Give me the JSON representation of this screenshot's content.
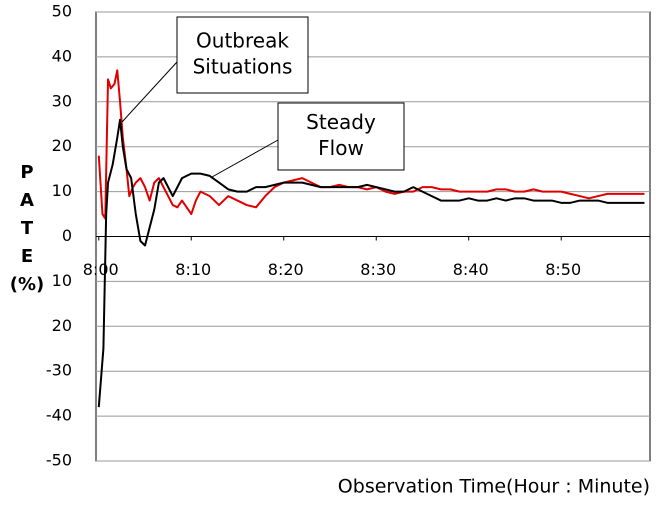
{
  "chart_data": {
    "type": "line",
    "ylabel": [
      "P",
      "A",
      "T",
      "E",
      "(%)"
    ],
    "xlabel": "Observation  Time(Hour : Minute)",
    "xlim": [
      -0.3,
      59.6
    ],
    "ylim": [
      -50,
      50
    ],
    "yticks": [
      50,
      40,
      30,
      20,
      10,
      0,
      {
        "value": -10,
        "label": "10"
      },
      {
        "value": -20,
        "label": "20"
      },
      -30,
      -40,
      -50
    ],
    "xticks": [
      {
        "value": 0,
        "label": "8:00"
      },
      {
        "value": 10,
        "label": "8:10"
      },
      {
        "value": 20,
        "label": "8:20"
      },
      {
        "value": 30,
        "label": "8:30"
      },
      {
        "value": 40,
        "label": "8:40"
      },
      {
        "value": 50,
        "label": "8:50"
      }
    ],
    "grid": true,
    "annotations": [
      {
        "lines": [
          "Outbreak",
          "Situations"
        ]
      },
      {
        "lines": [
          "Steady",
          "Flow"
        ]
      }
    ],
    "series": [
      {
        "color": "#000000",
        "x": [
          0,
          0.5,
          0.8,
          1,
          1.5,
          2,
          2.3,
          2.6,
          3,
          3.5,
          4,
          4.5,
          5,
          5.5,
          6,
          6.5,
          7,
          7.5,
          8,
          8.5,
          9,
          10,
          11,
          12,
          13,
          14,
          15,
          16,
          17,
          18,
          19,
          20,
          21,
          22,
          23,
          24,
          25,
          26,
          27,
          28,
          29,
          30,
          31,
          32,
          33,
          34,
          35,
          36,
          37,
          38,
          39,
          40,
          41,
          42,
          43,
          44,
          45,
          46,
          47,
          48,
          49,
          50,
          51,
          52,
          53,
          54,
          55,
          56,
          57,
          58,
          59
        ],
        "values": [
          -38,
          -25,
          5,
          12,
          16,
          22,
          26,
          20,
          15,
          13,
          5,
          -1,
          -2,
          2,
          6,
          12,
          13,
          11,
          9,
          11,
          13,
          14,
          14,
          13.5,
          12,
          10.5,
          10,
          10,
          11,
          11,
          11.5,
          12,
          12,
          12,
          11.5,
          11,
          11,
          11,
          11,
          11,
          11.5,
          11,
          10.5,
          10,
          10,
          11,
          10,
          9,
          8,
          8,
          8,
          8.5,
          8,
          8,
          8.5,
          8,
          8.5,
          8.5,
          8,
          8,
          8,
          7.5,
          7.5,
          8,
          8,
          8,
          7.5,
          7.5,
          7.5,
          7.5,
          7.5
        ]
      },
      {
        "color": "#e00000",
        "x": [
          0,
          0.4,
          0.7,
          1,
          1.3,
          1.7,
          2,
          2.3,
          2.6,
          3,
          3.3,
          3.7,
          4,
          4.5,
          5,
          5.5,
          6,
          6.5,
          7,
          7.5,
          8,
          8.5,
          9,
          10,
          10.5,
          11,
          12,
          13,
          14,
          15,
          16,
          17,
          18,
          19,
          20,
          21,
          22,
          23,
          24,
          25,
          26,
          27,
          28,
          29,
          30,
          31,
          32,
          33,
          34,
          35,
          36,
          37,
          38,
          39,
          40,
          41,
          42,
          43,
          44,
          45,
          46,
          47,
          48,
          49,
          50,
          51,
          52,
          53,
          54,
          55,
          56,
          57,
          58,
          59
        ],
        "values": [
          18,
          5,
          4,
          35,
          33,
          34,
          37,
          30,
          22,
          15,
          9,
          11,
          12,
          13,
          11,
          8,
          12,
          13,
          11,
          9,
          7,
          6.5,
          8,
          5,
          8,
          10,
          9,
          7,
          9,
          8,
          7,
          6.5,
          9,
          11,
          12,
          12.5,
          13,
          12,
          11,
          11,
          11.5,
          11,
          11,
          10.5,
          11,
          10,
          9.5,
          10,
          10,
          11,
          11,
          10.5,
          10.5,
          10,
          10,
          10,
          10,
          10.5,
          10.5,
          10,
          10,
          10.5,
          10,
          10,
          10,
          9.5,
          9,
          8.5,
          9,
          9.5,
          9.5,
          9.5,
          9.5,
          9.5
        ]
      }
    ]
  }
}
